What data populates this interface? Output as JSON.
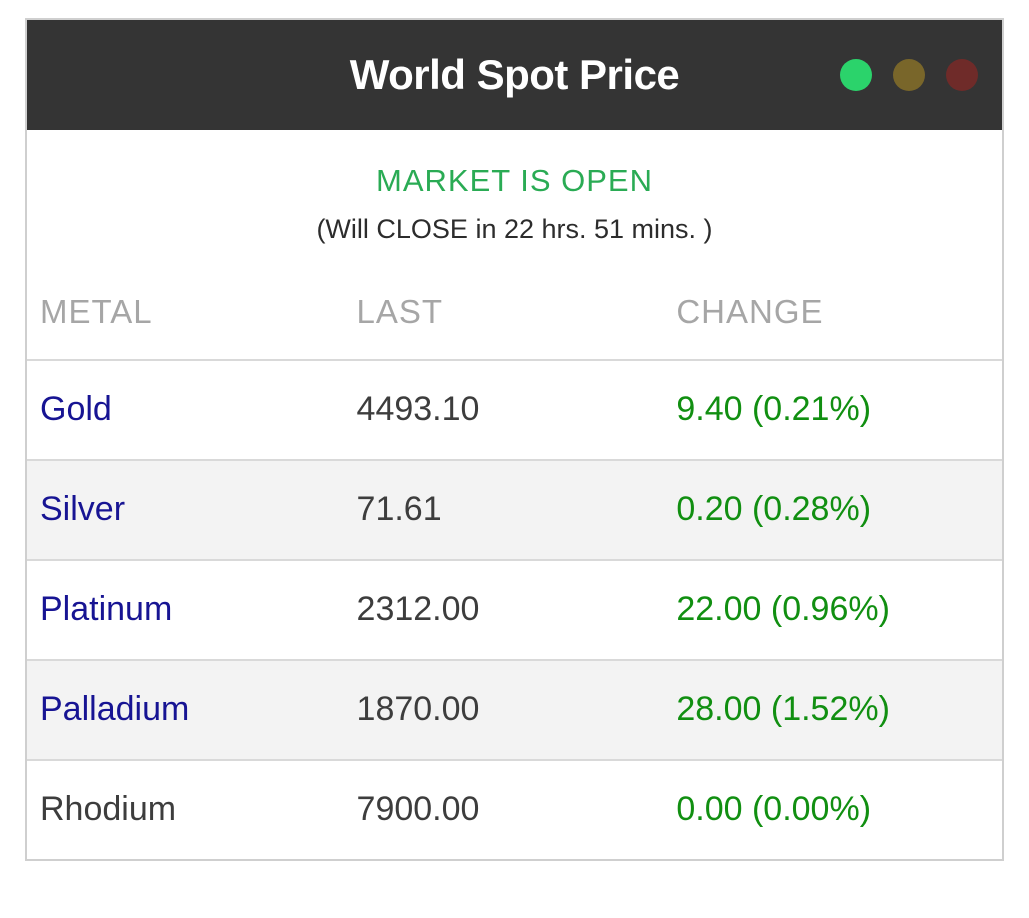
{
  "header": {
    "title": "World Spot Price",
    "dots": [
      {
        "name": "green-dot",
        "color": "#2bd36b"
      },
      {
        "name": "yellow-dot",
        "color": "#79662a"
      },
      {
        "name": "red-dot",
        "color": "#6f2b29"
      }
    ]
  },
  "status": {
    "market_status": "MARKET IS OPEN",
    "countdown": "(Will CLOSE in 22 hrs. 51 mins. )"
  },
  "table": {
    "columns": [
      "METAL",
      "LAST",
      "CHANGE"
    ],
    "rows": [
      {
        "metal": "Gold",
        "last": "4493.10",
        "change": "9.40 (0.21%)",
        "link": true
      },
      {
        "metal": "Silver",
        "last": "71.61",
        "change": "0.20 (0.28%)",
        "link": true
      },
      {
        "metal": "Platinum",
        "last": "2312.00",
        "change": "22.00 (0.96%)",
        "link": true
      },
      {
        "metal": "Palladium",
        "last": "1870.00",
        "change": "28.00 (1.52%)",
        "link": true
      },
      {
        "metal": "Rhodium",
        "last": "7900.00",
        "change": "0.00 (0.00%)",
        "link": false
      }
    ]
  },
  "colors": {
    "header_bg": "#343434",
    "widget_border": "#cfcfcf",
    "row_divider": "#d9d9d9",
    "stripe_bg": "#f3f3f3",
    "col_header_text": "#a6a6a6",
    "metal_link": "#171493",
    "value_text": "#3d3d3d",
    "change_green": "#118f11",
    "market_green": "#2aab54",
    "countdown_text": "#2c2c2c"
  }
}
